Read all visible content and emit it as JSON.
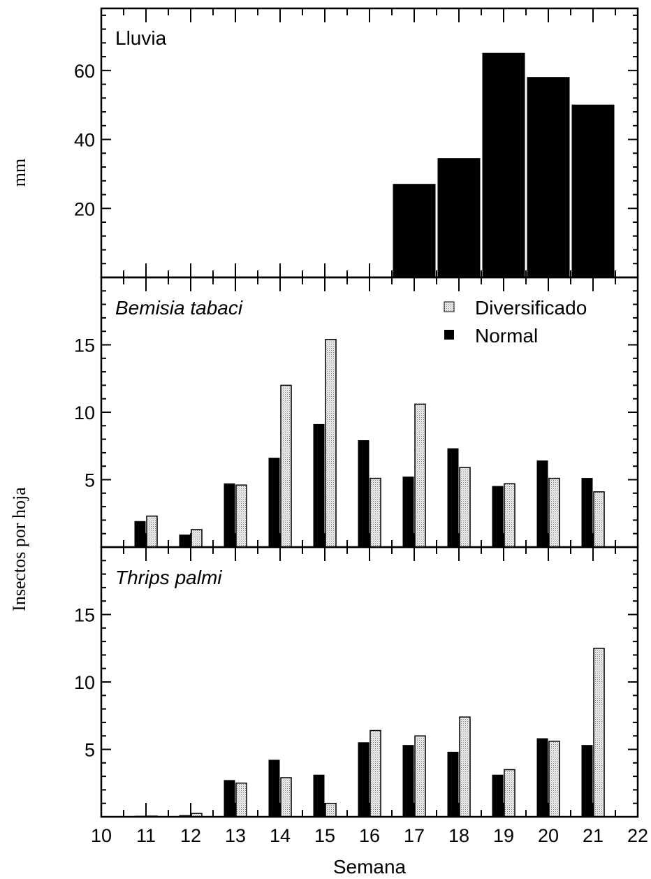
{
  "chart_data": [
    {
      "type": "bar",
      "title": "Lluvia",
      "title_italic": false,
      "ylabel": "mm",
      "xlim": [
        10,
        22
      ],
      "ylim": [
        0,
        78
      ],
      "yticks_major": [
        20,
        40,
        60
      ],
      "x": [
        17,
        18,
        19,
        20,
        21
      ],
      "series": [
        {
          "values": [
            27,
            34.5,
            65,
            58,
            50
          ],
          "color": "#000000"
        }
      ]
    },
    {
      "type": "bar",
      "title": "Bemisia tabaci",
      "title_italic": true,
      "xlim": [
        10,
        22
      ],
      "ylim": [
        0,
        20
      ],
      "yticks_major": [
        5,
        10,
        15
      ],
      "legend_position": "top-right",
      "x": [
        11,
        12,
        13,
        14,
        15,
        16,
        17,
        18,
        19,
        20,
        21
      ],
      "series": [
        {
          "name": "Normal",
          "values": [
            1.9,
            0.9,
            4.7,
            6.6,
            9.1,
            7.9,
            5.2,
            7.3,
            4.5,
            6.4,
            5.1
          ],
          "color": "#000000"
        },
        {
          "name": "Diversificado",
          "values": [
            2.3,
            1.3,
            4.6,
            12.0,
            15.4,
            5.1,
            10.6,
            5.9,
            4.7,
            5.1,
            4.1
          ],
          "color": "#d8d8d8"
        }
      ]
    },
    {
      "type": "bar",
      "title": "Thrips palmi",
      "title_italic": true,
      "xlabel": "Semana",
      "xlim": [
        10,
        22
      ],
      "ylim": [
        0,
        20
      ],
      "yticks_major": [
        5,
        10,
        15
      ],
      "xticks": [
        10,
        11,
        12,
        13,
        14,
        15,
        16,
        17,
        18,
        19,
        20,
        21,
        22
      ],
      "x": [
        11,
        12,
        13,
        14,
        15,
        16,
        17,
        18,
        19,
        20,
        21
      ],
      "series": [
        {
          "name": "Normal",
          "values": [
            0.05,
            0.1,
            2.7,
            4.2,
            3.1,
            5.5,
            5.3,
            4.8,
            3.1,
            5.8,
            5.3
          ],
          "color": "#000000"
        },
        {
          "name": "Diversificado",
          "values": [
            0.05,
            0.25,
            2.5,
            2.9,
            1.0,
            6.4,
            6.0,
            7.4,
            3.5,
            5.6,
            12.5
          ],
          "color": "#d8d8d8"
        }
      ]
    }
  ],
  "shared_ylabel": "Insectos por hoja"
}
